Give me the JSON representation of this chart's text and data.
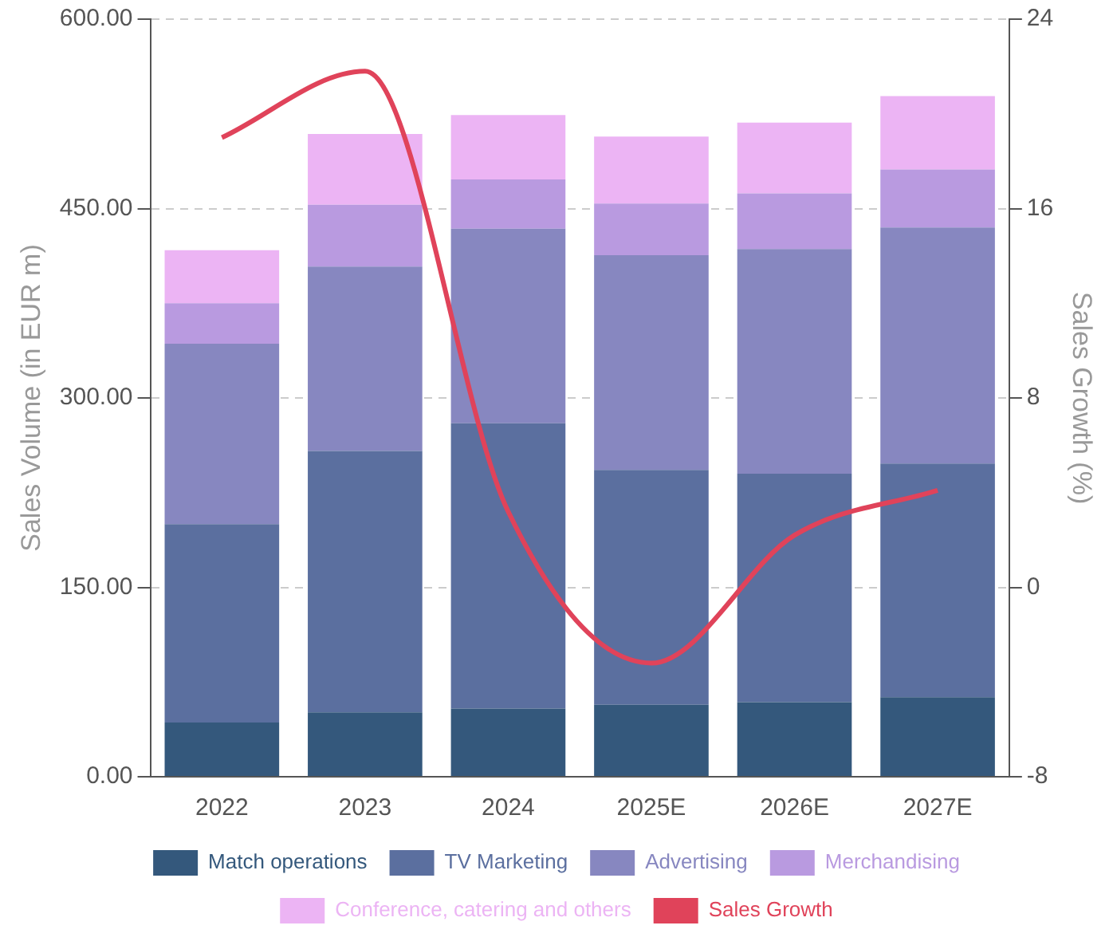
{
  "chart_data": {
    "type": "bar",
    "stacked": true,
    "categories": [
      "2022",
      "2023",
      "2024",
      "2025E",
      "2026E",
      "2027E"
    ],
    "ylabel": "Sales Volume (in EUR m)",
    "y2label": "Sales Growth (%)",
    "ylim": [
      0,
      600
    ],
    "yticks": [
      {
        "value": 0,
        "label": "0.00"
      },
      {
        "value": 150,
        "label": "150.00"
      },
      {
        "value": 300,
        "label": "300.00"
      },
      {
        "value": 450,
        "label": "450.00"
      },
      {
        "value": 600,
        "label": "600.00"
      }
    ],
    "y2lim": [
      -8,
      24
    ],
    "y2ticks": [
      -8,
      0,
      8,
      16,
      24
    ],
    "grid": "y",
    "legend": "bottom",
    "series": [
      {
        "name": "Match operations",
        "color": "#34587c",
        "values": [
          43,
          51,
          54,
          57,
          59,
          63
        ]
      },
      {
        "name": "TV Marketing",
        "color": "#5b6f9f",
        "values": [
          157,
          207,
          226,
          186,
          181,
          185
        ]
      },
      {
        "name": "Advertising",
        "color": "#8787c0",
        "values": [
          143,
          146,
          154,
          170,
          178,
          187
        ]
      },
      {
        "name": "Merchandising",
        "color": "#b99ae0",
        "values": [
          32,
          49,
          39,
          41,
          44,
          46
        ]
      },
      {
        "name": "Conference, catering and others",
        "color": "#ecb4f4",
        "values": [
          42,
          56,
          51,
          53,
          56,
          58
        ]
      },
      {
        "name": "Sales Growth",
        "type": "line",
        "axis": "y2",
        "color": "#e0435a",
        "marker": "none",
        "values": [
          19,
          21.8,
          3.2,
          -3.2,
          2.2,
          4.1
        ]
      }
    ]
  }
}
